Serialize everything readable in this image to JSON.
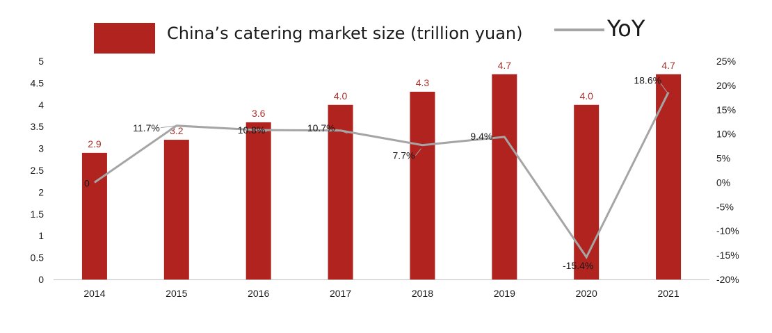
{
  "colors": {
    "bar": "#b0231e",
    "line": "#a5a5a5",
    "bar_label": "#a9312b",
    "text": "#1a1a1a",
    "axis": "#bfbfbf"
  },
  "legend": {
    "bar_label": "China’s catering market size (trillion yuan)",
    "line_label": "YoY"
  },
  "chart_data": {
    "type": "bar",
    "categories": [
      "2014",
      "2015",
      "2016",
      "2017",
      "2018",
      "2019",
      "2020",
      "2021"
    ],
    "series": [
      {
        "name": "China’s catering market size (trillion yuan)",
        "type": "bar",
        "axis": "left",
        "values": [
          2.9,
          3.2,
          3.6,
          4.0,
          4.3,
          4.7,
          4.0,
          4.7
        ],
        "labels": [
          "2.9",
          "3.2",
          "3.6",
          "4.0",
          "4.3",
          "4.7",
          "4.0",
          "4.7"
        ]
      },
      {
        "name": "YoY",
        "type": "line",
        "axis": "right",
        "values": [
          0,
          11.7,
          10.8,
          10.7,
          7.7,
          9.4,
          -15.4,
          18.6
        ],
        "labels": [
          "0",
          "11.7%",
          "10.8%",
          "10.7%",
          "7.7%",
          "9.4%",
          "-15.4%",
          "18.6%"
        ]
      }
    ],
    "y_left": {
      "lim": [
        0,
        5
      ],
      "ticks": [
        "0",
        "0.5",
        "1",
        "1.5",
        "2",
        "2.5",
        "3",
        "3.5",
        "4",
        "4.5",
        "5"
      ]
    },
    "y_right": {
      "lim": [
        -20,
        25
      ],
      "ticks": [
        "-20%",
        "-15%",
        "-10%",
        "-5%",
        "0%",
        "5%",
        "10%",
        "15%",
        "20%",
        "25%"
      ]
    },
    "grid": false
  }
}
